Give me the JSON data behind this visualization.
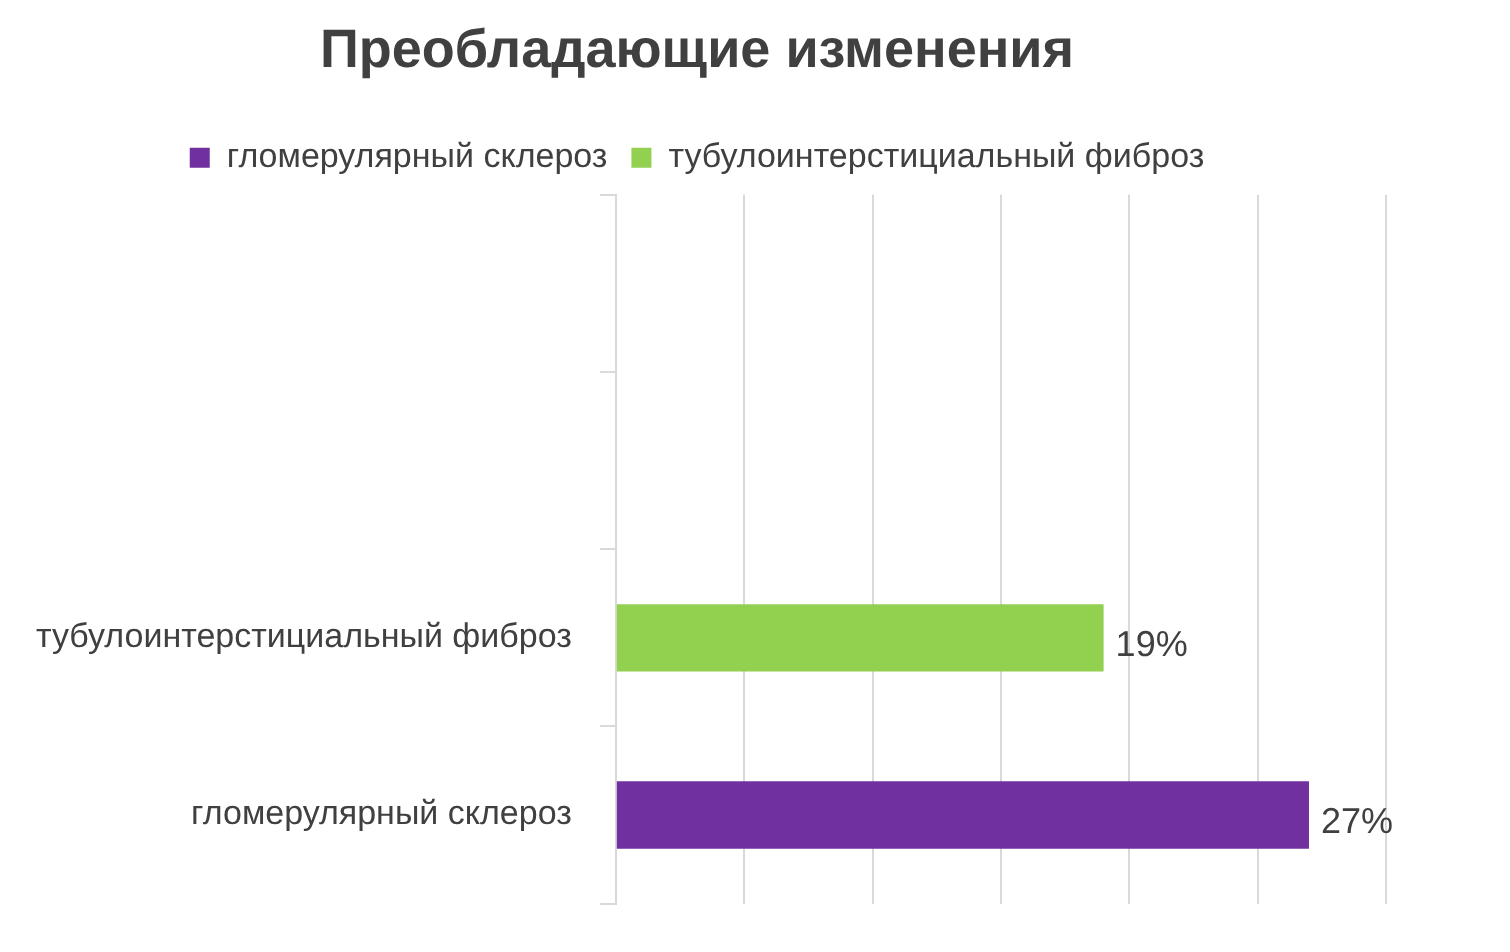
{
  "chart_data": {
    "type": "bar",
    "orientation": "horizontal",
    "title": "Преобладающие изменения",
    "categories": [
      null,
      null,
      "тубулоинтерстициальный фиброз",
      "гломерулярный склероз"
    ],
    "series": [
      {
        "name": "гломерулярный склероз",
        "color": "#7030a0",
        "values": [
          null,
          null,
          null,
          27
        ],
        "value_labels": [
          null,
          null,
          null,
          "27%"
        ]
      },
      {
        "name": "тубулоинтерстициальный фиброз",
        "color": "#92d050",
        "values": [
          null,
          null,
          19,
          null
        ],
        "value_labels": [
          null,
          null,
          "19%",
          null
        ]
      }
    ],
    "xlim": [
      0,
      30
    ],
    "xticks": [
      {
        "value": 0,
        "label": null
      },
      {
        "value": 5,
        "label": null
      },
      {
        "value": 10,
        "label": null
      },
      {
        "value": 15,
        "label": null
      },
      {
        "value": 20,
        "label": null
      },
      {
        "value": 25,
        "label": null
      },
      {
        "value": 30,
        "label": null
      }
    ],
    "tick_labels": "y",
    "grid": "x",
    "legend": "top"
  }
}
